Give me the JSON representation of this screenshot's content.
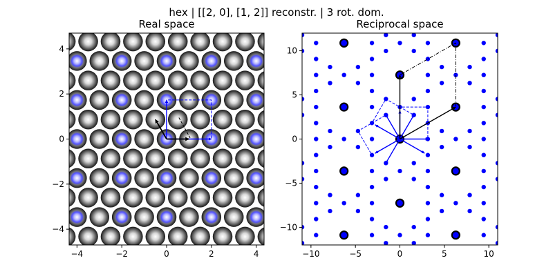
{
  "figure": {
    "suptitle": "hex | [[2, 0], [1, 2]] reconstr. | 3 rot. dom."
  },
  "chart_data": [
    {
      "type": "scatter",
      "title": "Real space",
      "xlim": [
        -4.35,
        4.35
      ],
      "ylim": [
        -4.7,
        4.7
      ],
      "xticks": [
        -4,
        -2,
        0,
        2,
        4
      ],
      "yticks": [
        -4,
        -2,
        0,
        2,
        4
      ],
      "xtick_labels": [
        "−4",
        "−2",
        "0",
        "2",
        "4"
      ],
      "ytick_labels": [
        "−4",
        "−2",
        "0",
        "2",
        "4"
      ],
      "lattice": {
        "kind": "hexagonal",
        "a1": [
          1,
          0
        ],
        "a2": [
          0.5,
          0.866
        ]
      },
      "highlight_sites": {
        "supercell_a1": [
          2,
          0
        ],
        "supercell_a2": [
          0,
          1.732
        ]
      },
      "substrate_vectors": [
        {
          "x": 0,
          "y": 0,
          "dx": 1,
          "dy": 0
        },
        {
          "x": 0,
          "y": 0,
          "dx": -0.5,
          "dy": 0.866
        }
      ],
      "overlayer_vectors": [
        {
          "x": 0,
          "y": 0,
          "dx": 2,
          "dy": 0
        },
        {
          "x": 0,
          "y": 0,
          "dx": 0,
          "dy": 1.732
        }
      ],
      "unit_cell": [
        [
          0,
          0
        ],
        [
          2,
          0
        ],
        [
          2,
          1.732
        ],
        [
          0,
          1.732
        ]
      ],
      "colors": {
        "substrate": "#000000",
        "overlayer": "#0000ff",
        "highlight": "#6a6aff"
      }
    },
    {
      "type": "scatter",
      "title": "Reciprocal space",
      "xlim": [
        -11,
        11
      ],
      "ylim": [
        -12,
        12
      ],
      "xticks": [
        -10,
        -5,
        0,
        5,
        10
      ],
      "yticks": [
        -10,
        -5,
        0,
        5,
        10
      ],
      "xtick_labels": [
        "−10",
        "−5",
        "0",
        "5",
        "10"
      ],
      "ytick_labels": [
        "−10",
        "−5",
        "0",
        "5",
        "10"
      ],
      "substrate_spots": {
        "b1": [
          6.283,
          3.628
        ],
        "b2": [
          0,
          7.255
        ],
        "range": 2
      },
      "overlayer_spots": {
        "b1": [
          3.1415,
          0
        ],
        "b2": [
          0,
          3.628
        ],
        "domain_rotations_deg": [
          0,
          60,
          120
        ]
      },
      "substrate_vectors": [
        {
          "x": 0,
          "y": 0,
          "dx": 6.283,
          "dy": 3.628
        },
        {
          "x": 0,
          "y": 0,
          "dx": 0,
          "dy": 7.255
        }
      ],
      "overlayer_vectors_deg": [
        0,
        60,
        90,
        120,
        150,
        210,
        240,
        330
      ],
      "overlayer_vector_length": 3.2,
      "substrate_cell": [
        [
          0,
          7.255
        ],
        [
          6.283,
          10.883
        ],
        [
          6.283,
          3.628
        ]
      ],
      "overlayer_cell_0deg": [
        [
          0,
          0
        ],
        [
          3.1415,
          0
        ],
        [
          3.1415,
          3.628
        ],
        [
          0,
          3.628
        ]
      ],
      "colors": {
        "substrate": "#000000",
        "overlayer": "#0000ff"
      }
    }
  ]
}
